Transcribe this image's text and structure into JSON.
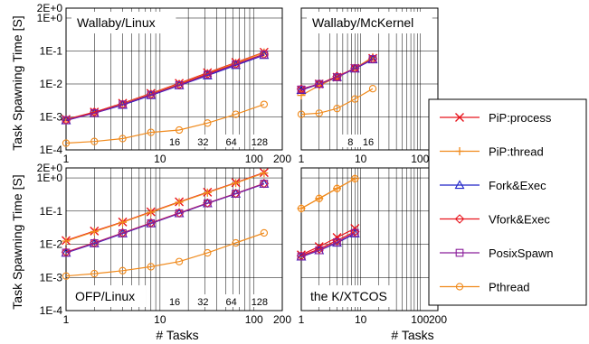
{
  "figure": {
    "ylabel": "Task Spawning Time [S]",
    "xlabel": "# Tasks"
  },
  "legend": {
    "placement": "right",
    "entries": [
      {
        "name": "PiP:process",
        "color": "#e8141c",
        "marker": "x"
      },
      {
        "name": "PiP:thread",
        "color": "#f08a1c",
        "marker": "plus"
      },
      {
        "name": "Fork&Exec",
        "color": "#1e22c8",
        "marker": "triangle"
      },
      {
        "name": "Vfork&Exec",
        "color": "#e8141c",
        "marker": "diamond"
      },
      {
        "name": "PosixSpawn",
        "color": "#8a1e9a",
        "marker": "square"
      },
      {
        "name": "Pthread",
        "color": "#f08a1c",
        "marker": "circle"
      }
    ]
  },
  "chart_data": [
    {
      "type": "line",
      "title": "Wallaby/Linux",
      "x_scale": "log",
      "y_scale": "log",
      "xlim": [
        1,
        200
      ],
      "ylim": [
        0.0001,
        2
      ],
      "x_ticks": [
        "1",
        "10",
        "100",
        "200"
      ],
      "y_ticks": [
        "1E-4",
        "1E-3",
        "1E-2",
        "1E-1",
        "1E+0",
        "2E+0"
      ],
      "core_labels": [
        "16",
        "32",
        "64",
        "128"
      ],
      "core_label_x": [
        16,
        32,
        64,
        128
      ],
      "grid": true,
      "series": [
        {
          "name": "PiP:process",
          "x": [
            1,
            2,
            4,
            8,
            16,
            32,
            64,
            128
          ],
          "y": [
            0.00085,
            0.0014,
            0.0026,
            0.0052,
            0.0105,
            0.022,
            0.045,
            0.092
          ]
        },
        {
          "name": "PiP:thread",
          "x": [
            1,
            2,
            4,
            8,
            16,
            32,
            64,
            128
          ],
          "y": [
            0.00082,
            0.0014,
            0.0025,
            0.005,
            0.01,
            0.021,
            0.043,
            0.09
          ]
        },
        {
          "name": "Fork&Exec",
          "x": [
            1,
            2,
            4,
            8,
            16,
            32,
            64,
            128
          ],
          "y": [
            0.00078,
            0.0013,
            0.0023,
            0.0045,
            0.009,
            0.018,
            0.037,
            0.075
          ]
        },
        {
          "name": "Vfork&Exec",
          "x": [
            1,
            2,
            4,
            8,
            16,
            32,
            64,
            128
          ],
          "y": [
            0.0008,
            0.0014,
            0.0024,
            0.0048,
            0.0095,
            0.02,
            0.04,
            0.08
          ]
        },
        {
          "name": "PosixSpawn",
          "x": [
            1,
            2,
            4,
            8,
            16,
            32,
            64,
            128
          ],
          "y": [
            0.0008,
            0.0013,
            0.0024,
            0.0047,
            0.0092,
            0.019,
            0.039,
            0.078
          ]
        },
        {
          "name": "Pthread",
          "x": [
            1,
            2,
            4,
            8,
            16,
            32,
            64,
            128
          ],
          "y": [
            0.00016,
            0.00018,
            0.00022,
            0.00034,
            0.0004,
            0.00065,
            0.0012,
            0.0024
          ]
        }
      ]
    },
    {
      "type": "line",
      "title": "Wallaby/McKernel",
      "x_scale": "log",
      "y_scale": "log",
      "xlim": [
        1,
        200
      ],
      "ylim": [
        0.0001,
        2
      ],
      "x_ticks": [
        "1",
        "10",
        "100",
        "200"
      ],
      "y_ticks": [
        "1E-4",
        "1E-3",
        "1E-2",
        "1E-1",
        "1E+0",
        "2E+0"
      ],
      "core_labels": [
        "8",
        "16"
      ],
      "core_label_x": [
        8,
        16
      ],
      "grid": true,
      "series": [
        {
          "name": "PiP:process",
          "x": [
            1,
            2,
            4,
            8,
            16
          ],
          "y": [
            0.0065,
            0.01,
            0.016,
            0.03,
            0.06
          ]
        },
        {
          "name": "PiP:thread",
          "x": [
            1,
            2,
            4,
            8,
            16
          ],
          "y": [
            0.0045,
            0.009,
            0.016,
            0.03,
            0.065
          ]
        },
        {
          "name": "Fork&Exec",
          "x": [
            1,
            2,
            4,
            8,
            16
          ],
          "y": [
            0.0065,
            0.01,
            0.016,
            0.029,
            0.055
          ]
        },
        {
          "name": "Vfork&Exec",
          "x": [
            1,
            2,
            4,
            8,
            16
          ],
          "y": [
            0.007,
            0.01,
            0.017,
            0.03,
            0.058
          ]
        },
        {
          "name": "PosixSpawn",
          "x": [
            1,
            2,
            4,
            8,
            16
          ],
          "y": [
            0.0068,
            0.01,
            0.016,
            0.03,
            0.057
          ]
        },
        {
          "name": "Pthread",
          "x": [
            1,
            2,
            4,
            8,
            16
          ],
          "y": [
            0.0012,
            0.0013,
            0.0018,
            0.0035,
            0.0072
          ]
        }
      ]
    },
    {
      "type": "line",
      "title": "OFP/Linux",
      "x_scale": "log",
      "y_scale": "log",
      "xlim": [
        1,
        200
      ],
      "ylim": [
        0.0001,
        2
      ],
      "x_ticks": [
        "1",
        "10",
        "100",
        "200"
      ],
      "y_ticks": [
        "1E-4",
        "1E-3",
        "1E-2",
        "1E-1",
        "1E+0",
        "2E+0"
      ],
      "core_labels": [
        "16",
        "32",
        "64",
        "128"
      ],
      "core_label_x": [
        16,
        32,
        64,
        128
      ],
      "grid": true,
      "series": [
        {
          "name": "PiP:process",
          "x": [
            1,
            2,
            4,
            8,
            16,
            32,
            64,
            128
          ],
          "y": [
            0.013,
            0.025,
            0.047,
            0.095,
            0.19,
            0.37,
            0.72,
            1.45
          ]
        },
        {
          "name": "PiP:thread",
          "x": [
            1,
            2,
            4,
            8,
            16,
            32,
            64,
            128
          ],
          "y": [
            0.0125,
            0.024,
            0.046,
            0.092,
            0.185,
            0.36,
            0.7,
            1.4
          ]
        },
        {
          "name": "Fork&Exec",
          "x": [
            1,
            2,
            4,
            8,
            16,
            32,
            64,
            128
          ],
          "y": [
            0.0055,
            0.0105,
            0.021,
            0.042,
            0.085,
            0.17,
            0.33,
            0.66
          ]
        },
        {
          "name": "Vfork&Exec",
          "x": [
            1,
            2,
            4,
            8,
            16,
            32,
            64,
            128
          ],
          "y": [
            0.0058,
            0.011,
            0.022,
            0.044,
            0.088,
            0.175,
            0.34,
            0.68
          ]
        },
        {
          "name": "PosixSpawn",
          "x": [
            1,
            2,
            4,
            8,
            16,
            32,
            64,
            128
          ],
          "y": [
            0.0056,
            0.0108,
            0.0215,
            0.043,
            0.086,
            0.172,
            0.335,
            0.67
          ]
        },
        {
          "name": "Pthread",
          "x": [
            1,
            2,
            4,
            8,
            16,
            32,
            64,
            128
          ],
          "y": [
            0.0011,
            0.0013,
            0.0016,
            0.0021,
            0.003,
            0.0055,
            0.011,
            0.022
          ]
        }
      ]
    },
    {
      "type": "line",
      "title": "the K/XTCOS",
      "x_scale": "log",
      "y_scale": "log",
      "xlim": [
        1,
        200
      ],
      "ylim": [
        0.0001,
        2
      ],
      "x_ticks": [
        "1",
        "10",
        "100",
        "200"
      ],
      "y_ticks": [
        "1E-4",
        "1E-3",
        "1E-2",
        "1E-1",
        "1E+0",
        "2E+0"
      ],
      "core_labels": [],
      "core_label_x": [],
      "grid": true,
      "series": [
        {
          "name": "PiP:process",
          "x": [
            1,
            2,
            4,
            8
          ],
          "y": [
            0.0048,
            0.0085,
            0.016,
            0.03
          ]
        },
        {
          "name": "PiP:thread",
          "x": [
            1,
            2,
            4,
            8
          ],
          "y": [
            0.12,
            0.24,
            0.48,
            0.95
          ]
        },
        {
          "name": "Fork&Exec",
          "x": [
            1,
            2,
            4,
            8
          ],
          "y": [
            0.0042,
            0.0065,
            0.011,
            0.021
          ]
        },
        {
          "name": "Vfork&Exec",
          "x": [
            1,
            2,
            4,
            8
          ],
          "y": [
            0.0045,
            0.0072,
            0.013,
            0.024
          ]
        },
        {
          "name": "PosixSpawn",
          "x": [
            1,
            2,
            4,
            8
          ],
          "y": [
            0.0043,
            0.0066,
            0.0115,
            0.022
          ]
        },
        {
          "name": "Pthread",
          "x": [
            1,
            2,
            4,
            8
          ],
          "y": [
            0.12,
            0.24,
            0.48,
            0.95
          ]
        }
      ]
    }
  ]
}
